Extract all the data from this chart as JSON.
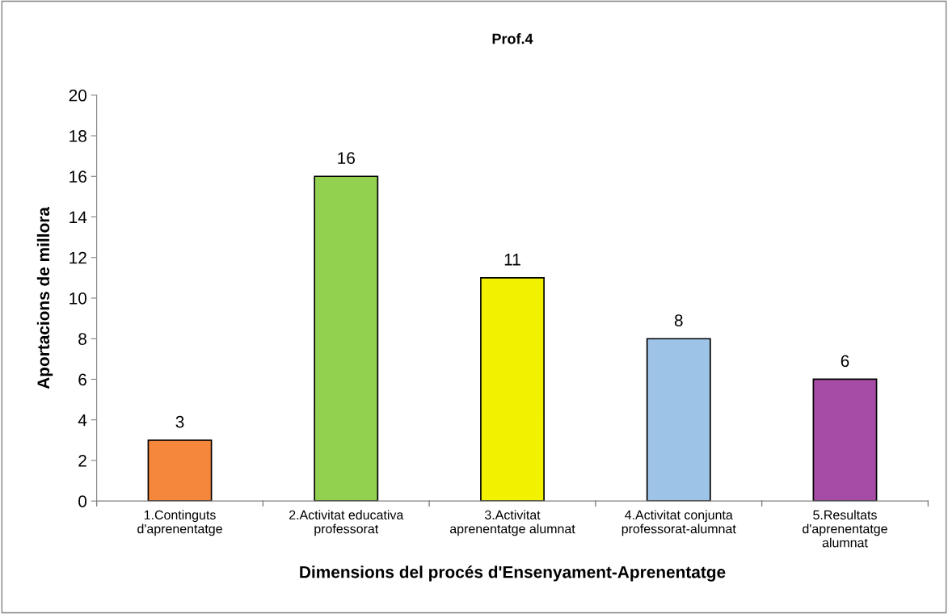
{
  "chart_data": {
    "type": "bar",
    "title": "Prof.4",
    "xlabel": "Dimensions del procés d'Ensenyament-Aprenentatge",
    "ylabel": "Aportacions de millora",
    "categories": [
      "1.Continguts\nd'aprenentatge",
      "2.Activitat educativa\nprofessorat",
      "3.Activitat\naprenentatge alumnat",
      "4.Activitat conjunta\nprofessorat-alumnat",
      "5.Resultats\nd'aprenentatge\nalumnat"
    ],
    "values": [
      3,
      16,
      11,
      8,
      6
    ],
    "colors": [
      "#f4873b",
      "#92d050",
      "#f2f200",
      "#9dc3e6",
      "#a64ca6"
    ],
    "ylim": [
      0,
      20
    ],
    "yticks": [
      0,
      2,
      4,
      6,
      8,
      10,
      12,
      14,
      16,
      18,
      20
    ],
    "grid": false,
    "data_labels": true
  }
}
